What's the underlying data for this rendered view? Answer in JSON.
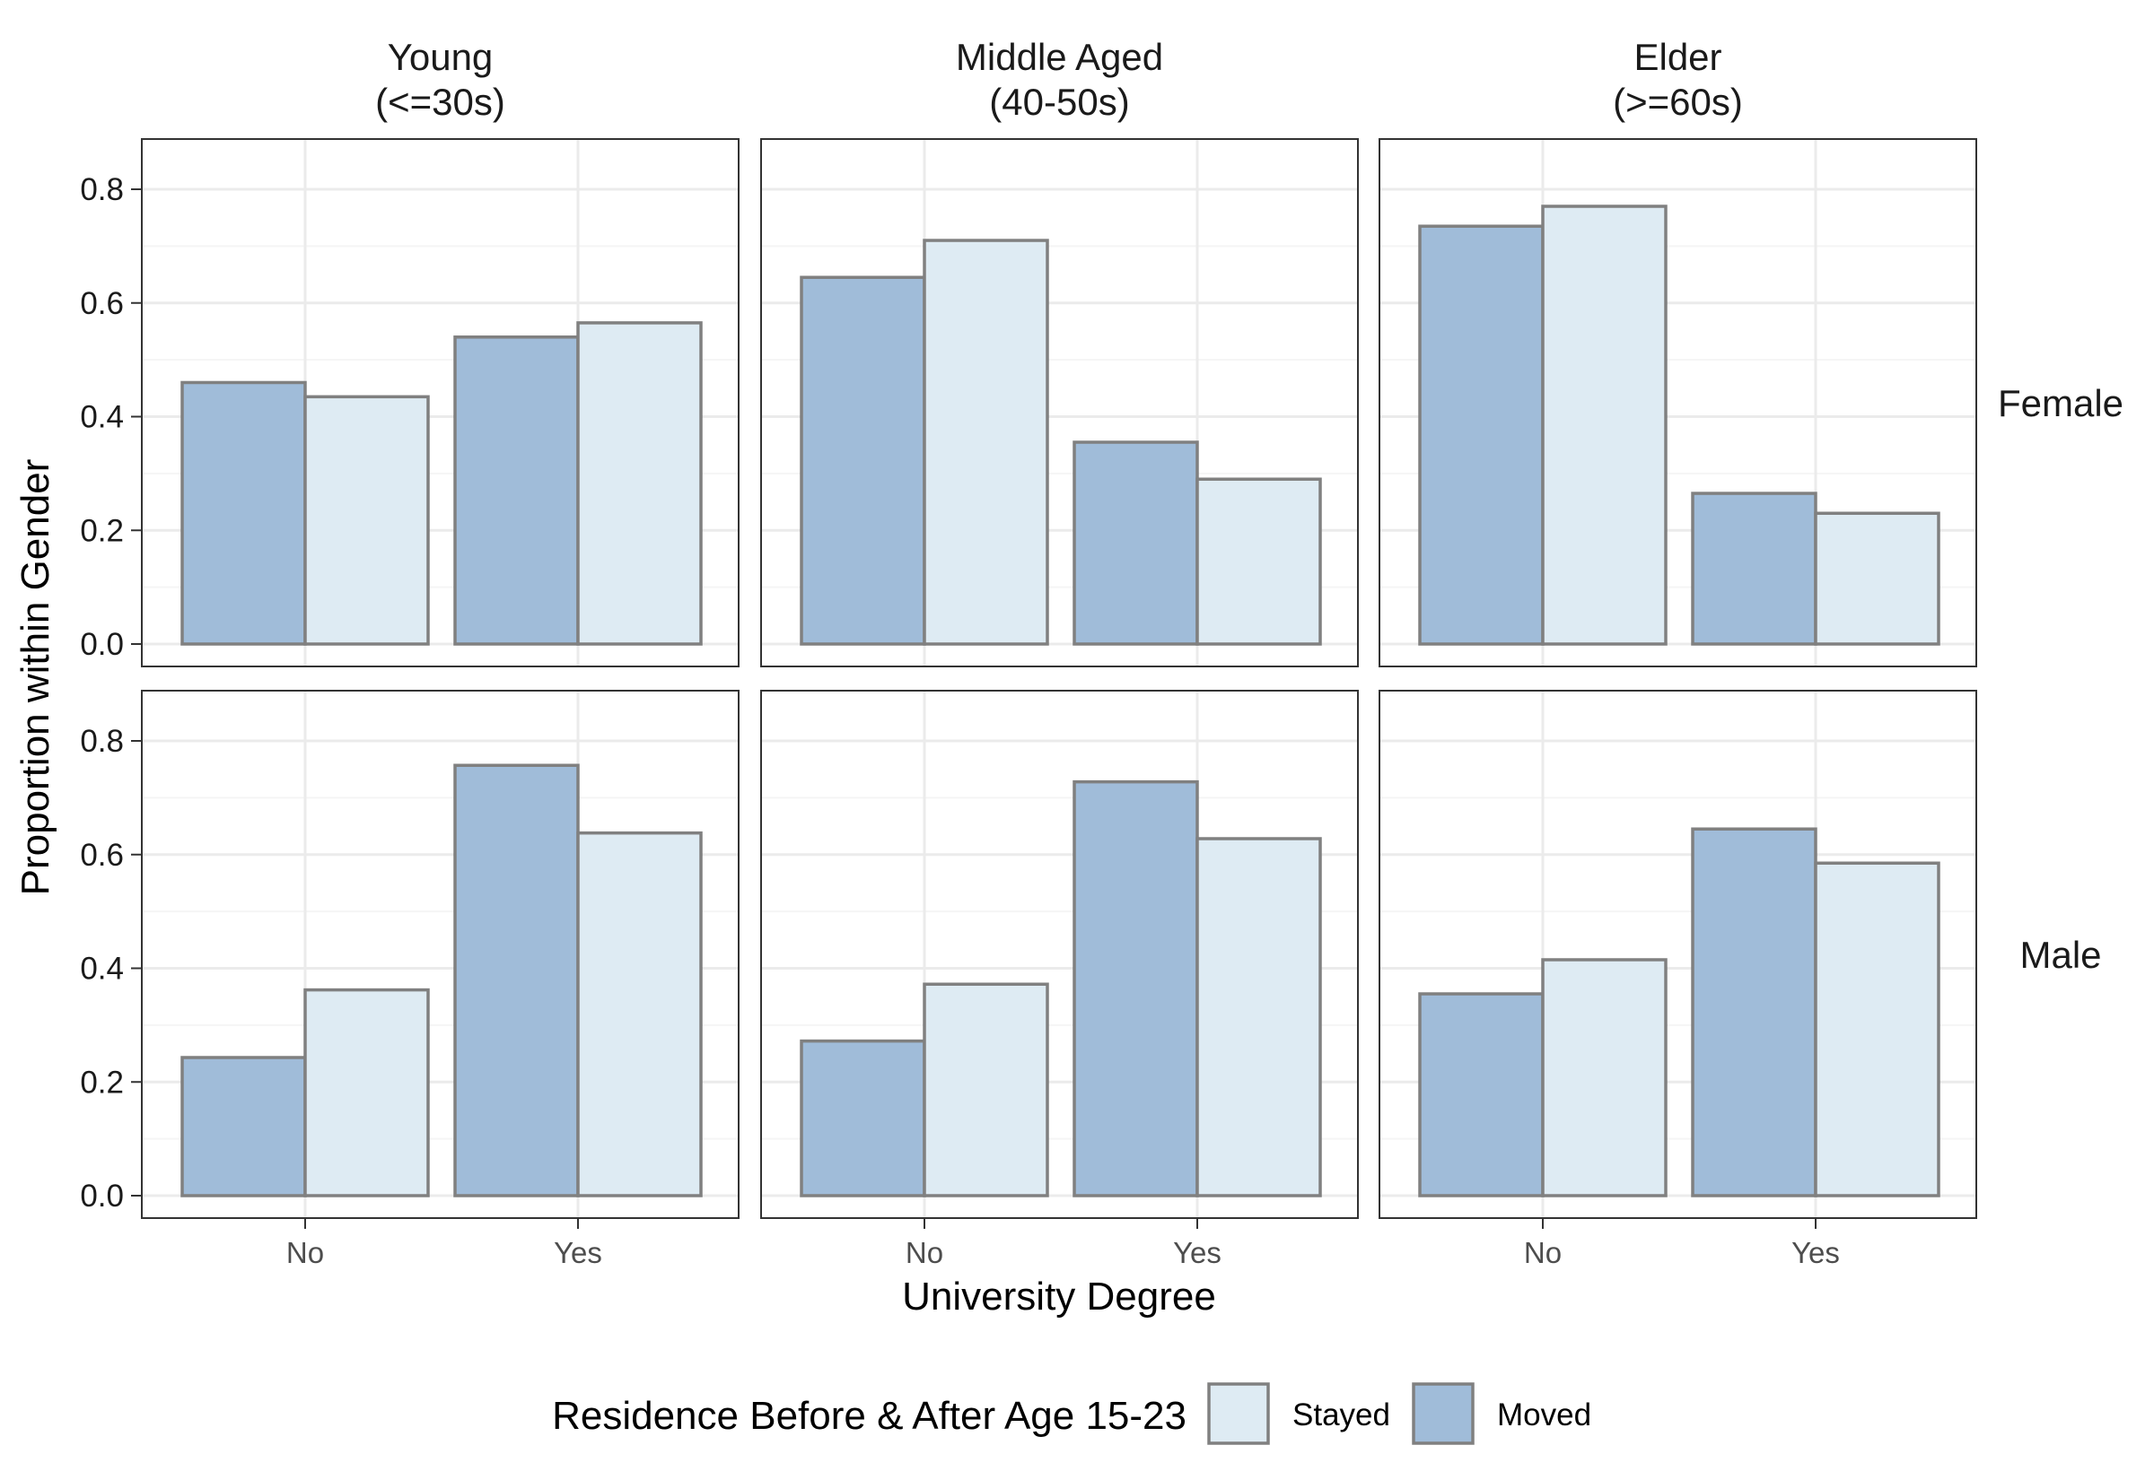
{
  "chart_data": {
    "type": "bar",
    "layout": "facet_grid",
    "xlabel": "University Degree",
    "ylabel": "Proportion within Gender",
    "ylim": [
      0,
      0.89
    ],
    "yticks": [
      "0.0",
      "0.2",
      "0.4",
      "0.6",
      "0.8"
    ],
    "ytick_values": [
      0,
      0.2,
      0.4,
      0.6,
      0.8
    ],
    "categories": [
      "No",
      "Yes"
    ],
    "grid": true,
    "columns": [
      {
        "key": "young",
        "line1": "Young",
        "line2": "(<=30s)"
      },
      {
        "key": "middle",
        "line1": "Middle Aged",
        "line2": "(40-50s)"
      },
      {
        "key": "elder",
        "line1": "Elder",
        "line2": "(>=60s)"
      }
    ],
    "rows": [
      "Female",
      "Male"
    ],
    "series_order": [
      "Moved",
      "Stayed"
    ],
    "legend": {
      "title": "Residence Before & After Age 15-23",
      "position": "bottom",
      "items": [
        {
          "label": "Stayed",
          "color": "#deebf3"
        },
        {
          "label": "Moved",
          "color": "#a0bcd9"
        }
      ]
    },
    "colors": {
      "Moved": "#a0bcd9",
      "Stayed": "#deebf3",
      "bar_outline": "#808080",
      "panel_border": "#333333",
      "grid_major": "#ebebeb",
      "grid_minor": "#f5f5f5"
    },
    "panels": [
      {
        "row": "Female",
        "column": "young",
        "Moved": [
          0.46,
          0.54
        ],
        "Stayed": [
          0.435,
          0.565
        ]
      },
      {
        "row": "Female",
        "column": "middle",
        "Moved": [
          0.645,
          0.355
        ],
        "Stayed": [
          0.71,
          0.29
        ]
      },
      {
        "row": "Female",
        "column": "elder",
        "Moved": [
          0.735,
          0.265
        ],
        "Stayed": [
          0.77,
          0.23
        ]
      },
      {
        "row": "Male",
        "column": "young",
        "Moved": [
          0.243,
          0.757
        ],
        "Stayed": [
          0.362,
          0.638
        ]
      },
      {
        "row": "Male",
        "column": "middle",
        "Moved": [
          0.272,
          0.728
        ],
        "Stayed": [
          0.372,
          0.628
        ]
      },
      {
        "row": "Male",
        "column": "elder",
        "Moved": [
          0.355,
          0.645
        ],
        "Stayed": [
          0.415,
          0.585
        ]
      }
    ]
  }
}
